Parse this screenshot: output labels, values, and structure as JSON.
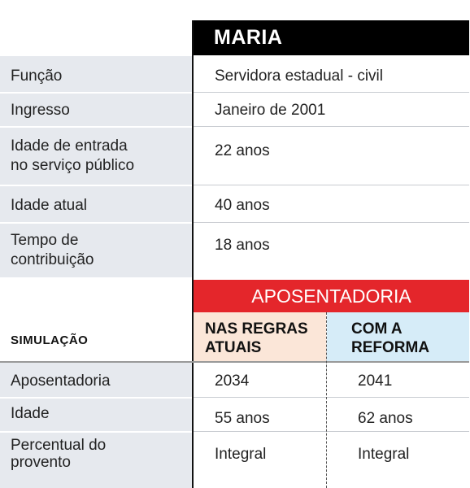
{
  "person": {
    "name": "MARIA"
  },
  "profile_rows": [
    {
      "label": "Função",
      "value": "Servidora estadual - civil"
    },
    {
      "label": "Ingresso",
      "value": "Janeiro de 2001"
    },
    {
      "label": "Idade de entrada\nno serviço público",
      "value": "22 anos"
    },
    {
      "label": "Idade atual",
      "value": "40 anos"
    },
    {
      "label": "Tempo de\ncontribuição",
      "value": "18 anos"
    }
  ],
  "simulation": {
    "section_label": "SIMULAÇÃO",
    "header": "APOSENTADORIA",
    "columns": [
      "NAS REGRAS\nATUAIS",
      "COM A\nREFORMA"
    ],
    "rows": [
      {
        "label": "Aposentadoria",
        "current": "2034",
        "reform": "2041"
      },
      {
        "label": "Idade",
        "current": "55 anos",
        "reform": "62 anos"
      },
      {
        "label": "Percentual do\nprovento",
        "current": "Integral",
        "reform": "Integral"
      }
    ]
  },
  "colors": {
    "header_bg": "#000000",
    "accent_red": "#e4262b",
    "label_bg": "#e6e9ee",
    "current_bg": "#fbe6d8",
    "reform_bg": "#d6ecf8"
  }
}
